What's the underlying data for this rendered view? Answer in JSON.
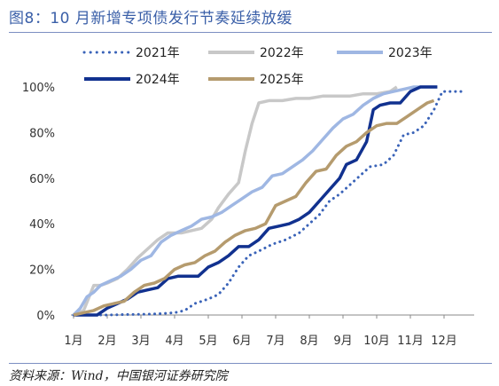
{
  "title": "图8：10 月新增专项债发行节奏延续放缓",
  "source": "资料来源：Wind，中国银河证券研究院",
  "chart_data": {
    "type": "line",
    "x_ticks": [
      "1月",
      "2月",
      "3月",
      "4月",
      "5月",
      "6月",
      "7月",
      "8月",
      "9月",
      "10月",
      "11月",
      "12月"
    ],
    "y_ticks": [
      "0%",
      "20%",
      "40%",
      "60%",
      "80%",
      "100%"
    ],
    "ylim": [
      0,
      100
    ],
    "legend_position": "top",
    "grid": false,
    "series": [
      {
        "name": "2021年",
        "color": "#3a63b8",
        "style": "dotted",
        "points": [
          [
            1,
            0
          ],
          [
            1.5,
            0
          ],
          [
            2,
            0
          ],
          [
            2.5,
            0.2
          ],
          [
            3,
            0.3
          ],
          [
            3.5,
            0.5
          ],
          [
            4,
            1
          ],
          [
            4.3,
            2
          ],
          [
            4.6,
            5
          ],
          [
            5,
            7
          ],
          [
            5.3,
            9
          ],
          [
            5.6,
            14
          ],
          [
            5.9,
            21
          ],
          [
            6.2,
            26
          ],
          [
            6.5,
            28
          ],
          [
            6.9,
            31
          ],
          [
            7.3,
            33
          ],
          [
            7.7,
            36
          ],
          [
            8,
            40
          ],
          [
            8.3,
            44
          ],
          [
            8.6,
            50
          ],
          [
            8.9,
            53
          ],
          [
            9.2,
            57
          ],
          [
            9.5,
            61
          ],
          [
            9.8,
            65
          ],
          [
            10.2,
            66
          ],
          [
            10.5,
            70
          ],
          [
            10.8,
            79
          ],
          [
            11.1,
            80
          ],
          [
            11.4,
            83
          ],
          [
            11.7,
            90
          ],
          [
            11.95,
            98
          ],
          [
            12.3,
            98
          ],
          [
            12.6,
            98
          ]
        ]
      },
      {
        "name": "2022年",
        "color": "#c8c8c8",
        "style": "solid",
        "points": [
          [
            1,
            0
          ],
          [
            1.3,
            2
          ],
          [
            1.6,
            13
          ],
          [
            1.8,
            13
          ],
          [
            2,
            14
          ],
          [
            2.3,
            16
          ],
          [
            2.6,
            20
          ],
          [
            2.9,
            25
          ],
          [
            3.2,
            29
          ],
          [
            3.5,
            33
          ],
          [
            3.8,
            36
          ],
          [
            4.2,
            36
          ],
          [
            4.5,
            37
          ],
          [
            4.8,
            38
          ],
          [
            5.1,
            42
          ],
          [
            5.3,
            47
          ],
          [
            5.6,
            53
          ],
          [
            5.9,
            58
          ],
          [
            6.1,
            72
          ],
          [
            6.3,
            84
          ],
          [
            6.5,
            93
          ],
          [
            6.8,
            94
          ],
          [
            7.2,
            94
          ],
          [
            7.6,
            95
          ],
          [
            8,
            95
          ],
          [
            8.4,
            96
          ],
          [
            8.8,
            96
          ],
          [
            9.2,
            96
          ],
          [
            9.6,
            97
          ],
          [
            10,
            97
          ],
          [
            10.4,
            98
          ],
          [
            10.6,
            100
          ]
        ]
      },
      {
        "name": "2023年",
        "color": "#9fb7e3",
        "style": "solid",
        "points": [
          [
            1,
            0
          ],
          [
            1.2,
            3
          ],
          [
            1.4,
            8
          ],
          [
            1.6,
            10
          ],
          [
            1.8,
            13
          ],
          [
            2.1,
            15
          ],
          [
            2.4,
            17
          ],
          [
            2.7,
            20
          ],
          [
            3,
            24
          ],
          [
            3.3,
            26
          ],
          [
            3.6,
            32
          ],
          [
            3.9,
            35
          ],
          [
            4.2,
            37
          ],
          [
            4.5,
            39
          ],
          [
            4.8,
            42
          ],
          [
            5.1,
            43
          ],
          [
            5.4,
            45
          ],
          [
            5.7,
            48
          ],
          [
            6,
            51
          ],
          [
            6.3,
            54
          ],
          [
            6.6,
            56
          ],
          [
            6.9,
            61
          ],
          [
            7.2,
            62
          ],
          [
            7.5,
            65
          ],
          [
            7.8,
            68
          ],
          [
            8.1,
            72
          ],
          [
            8.4,
            77
          ],
          [
            8.7,
            82
          ],
          [
            9,
            86
          ],
          [
            9.3,
            88
          ],
          [
            9.6,
            92
          ],
          [
            9.9,
            95
          ],
          [
            10.2,
            97
          ],
          [
            10.5,
            98
          ],
          [
            10.8,
            99
          ],
          [
            11.1,
            100
          ],
          [
            11.5,
            100
          ],
          [
            11.8,
            100
          ]
        ]
      },
      {
        "name": "2024年",
        "color": "#11318f",
        "style": "solid",
        "points": [
          [
            1,
            0
          ],
          [
            1.4,
            0
          ],
          [
            1.7,
            0
          ],
          [
            2,
            3
          ],
          [
            2.3,
            5
          ],
          [
            2.6,
            7
          ],
          [
            2.9,
            10
          ],
          [
            3.2,
            11
          ],
          [
            3.5,
            12
          ],
          [
            3.8,
            16
          ],
          [
            4.1,
            17
          ],
          [
            4.4,
            17
          ],
          [
            4.7,
            17
          ],
          [
            5,
            21
          ],
          [
            5.3,
            23
          ],
          [
            5.6,
            26
          ],
          [
            5.9,
            30
          ],
          [
            6.2,
            30
          ],
          [
            6.5,
            33
          ],
          [
            6.8,
            38
          ],
          [
            7.1,
            39
          ],
          [
            7.4,
            40
          ],
          [
            7.7,
            42
          ],
          [
            8,
            45
          ],
          [
            8.3,
            50
          ],
          [
            8.6,
            55
          ],
          [
            8.9,
            60
          ],
          [
            9.1,
            66
          ],
          [
            9.4,
            68
          ],
          [
            9.7,
            76
          ],
          [
            9.9,
            90
          ],
          [
            10.1,
            92
          ],
          [
            10.4,
            93
          ],
          [
            10.7,
            93
          ],
          [
            11,
            98
          ],
          [
            11.3,
            100
          ],
          [
            11.6,
            100
          ],
          [
            11.8,
            100
          ]
        ]
      },
      {
        "name": "2025年",
        "color": "#b59b6e",
        "style": "solid",
        "points": [
          [
            1,
            0
          ],
          [
            1.3,
            1
          ],
          [
            1.6,
            2
          ],
          [
            1.9,
            4
          ],
          [
            2.2,
            5
          ],
          [
            2.5,
            6
          ],
          [
            2.8,
            10
          ],
          [
            3.1,
            13
          ],
          [
            3.4,
            14
          ],
          [
            3.7,
            16
          ],
          [
            4,
            20
          ],
          [
            4.3,
            22
          ],
          [
            4.6,
            23
          ],
          [
            4.9,
            26
          ],
          [
            5.2,
            28
          ],
          [
            5.5,
            32
          ],
          [
            5.8,
            35
          ],
          [
            6.1,
            37
          ],
          [
            6.4,
            38
          ],
          [
            6.7,
            40
          ],
          [
            7,
            48
          ],
          [
            7.3,
            50
          ],
          [
            7.6,
            52
          ],
          [
            7.9,
            58
          ],
          [
            8.2,
            63
          ],
          [
            8.5,
            64
          ],
          [
            8.8,
            70
          ],
          [
            9.1,
            74
          ],
          [
            9.4,
            76
          ],
          [
            9.7,
            80
          ],
          [
            10,
            83
          ],
          [
            10.3,
            84
          ],
          [
            10.6,
            84
          ],
          [
            10.9,
            87
          ],
          [
            11.2,
            90
          ],
          [
            11.5,
            93
          ],
          [
            11.7,
            94
          ]
        ]
      }
    ]
  }
}
